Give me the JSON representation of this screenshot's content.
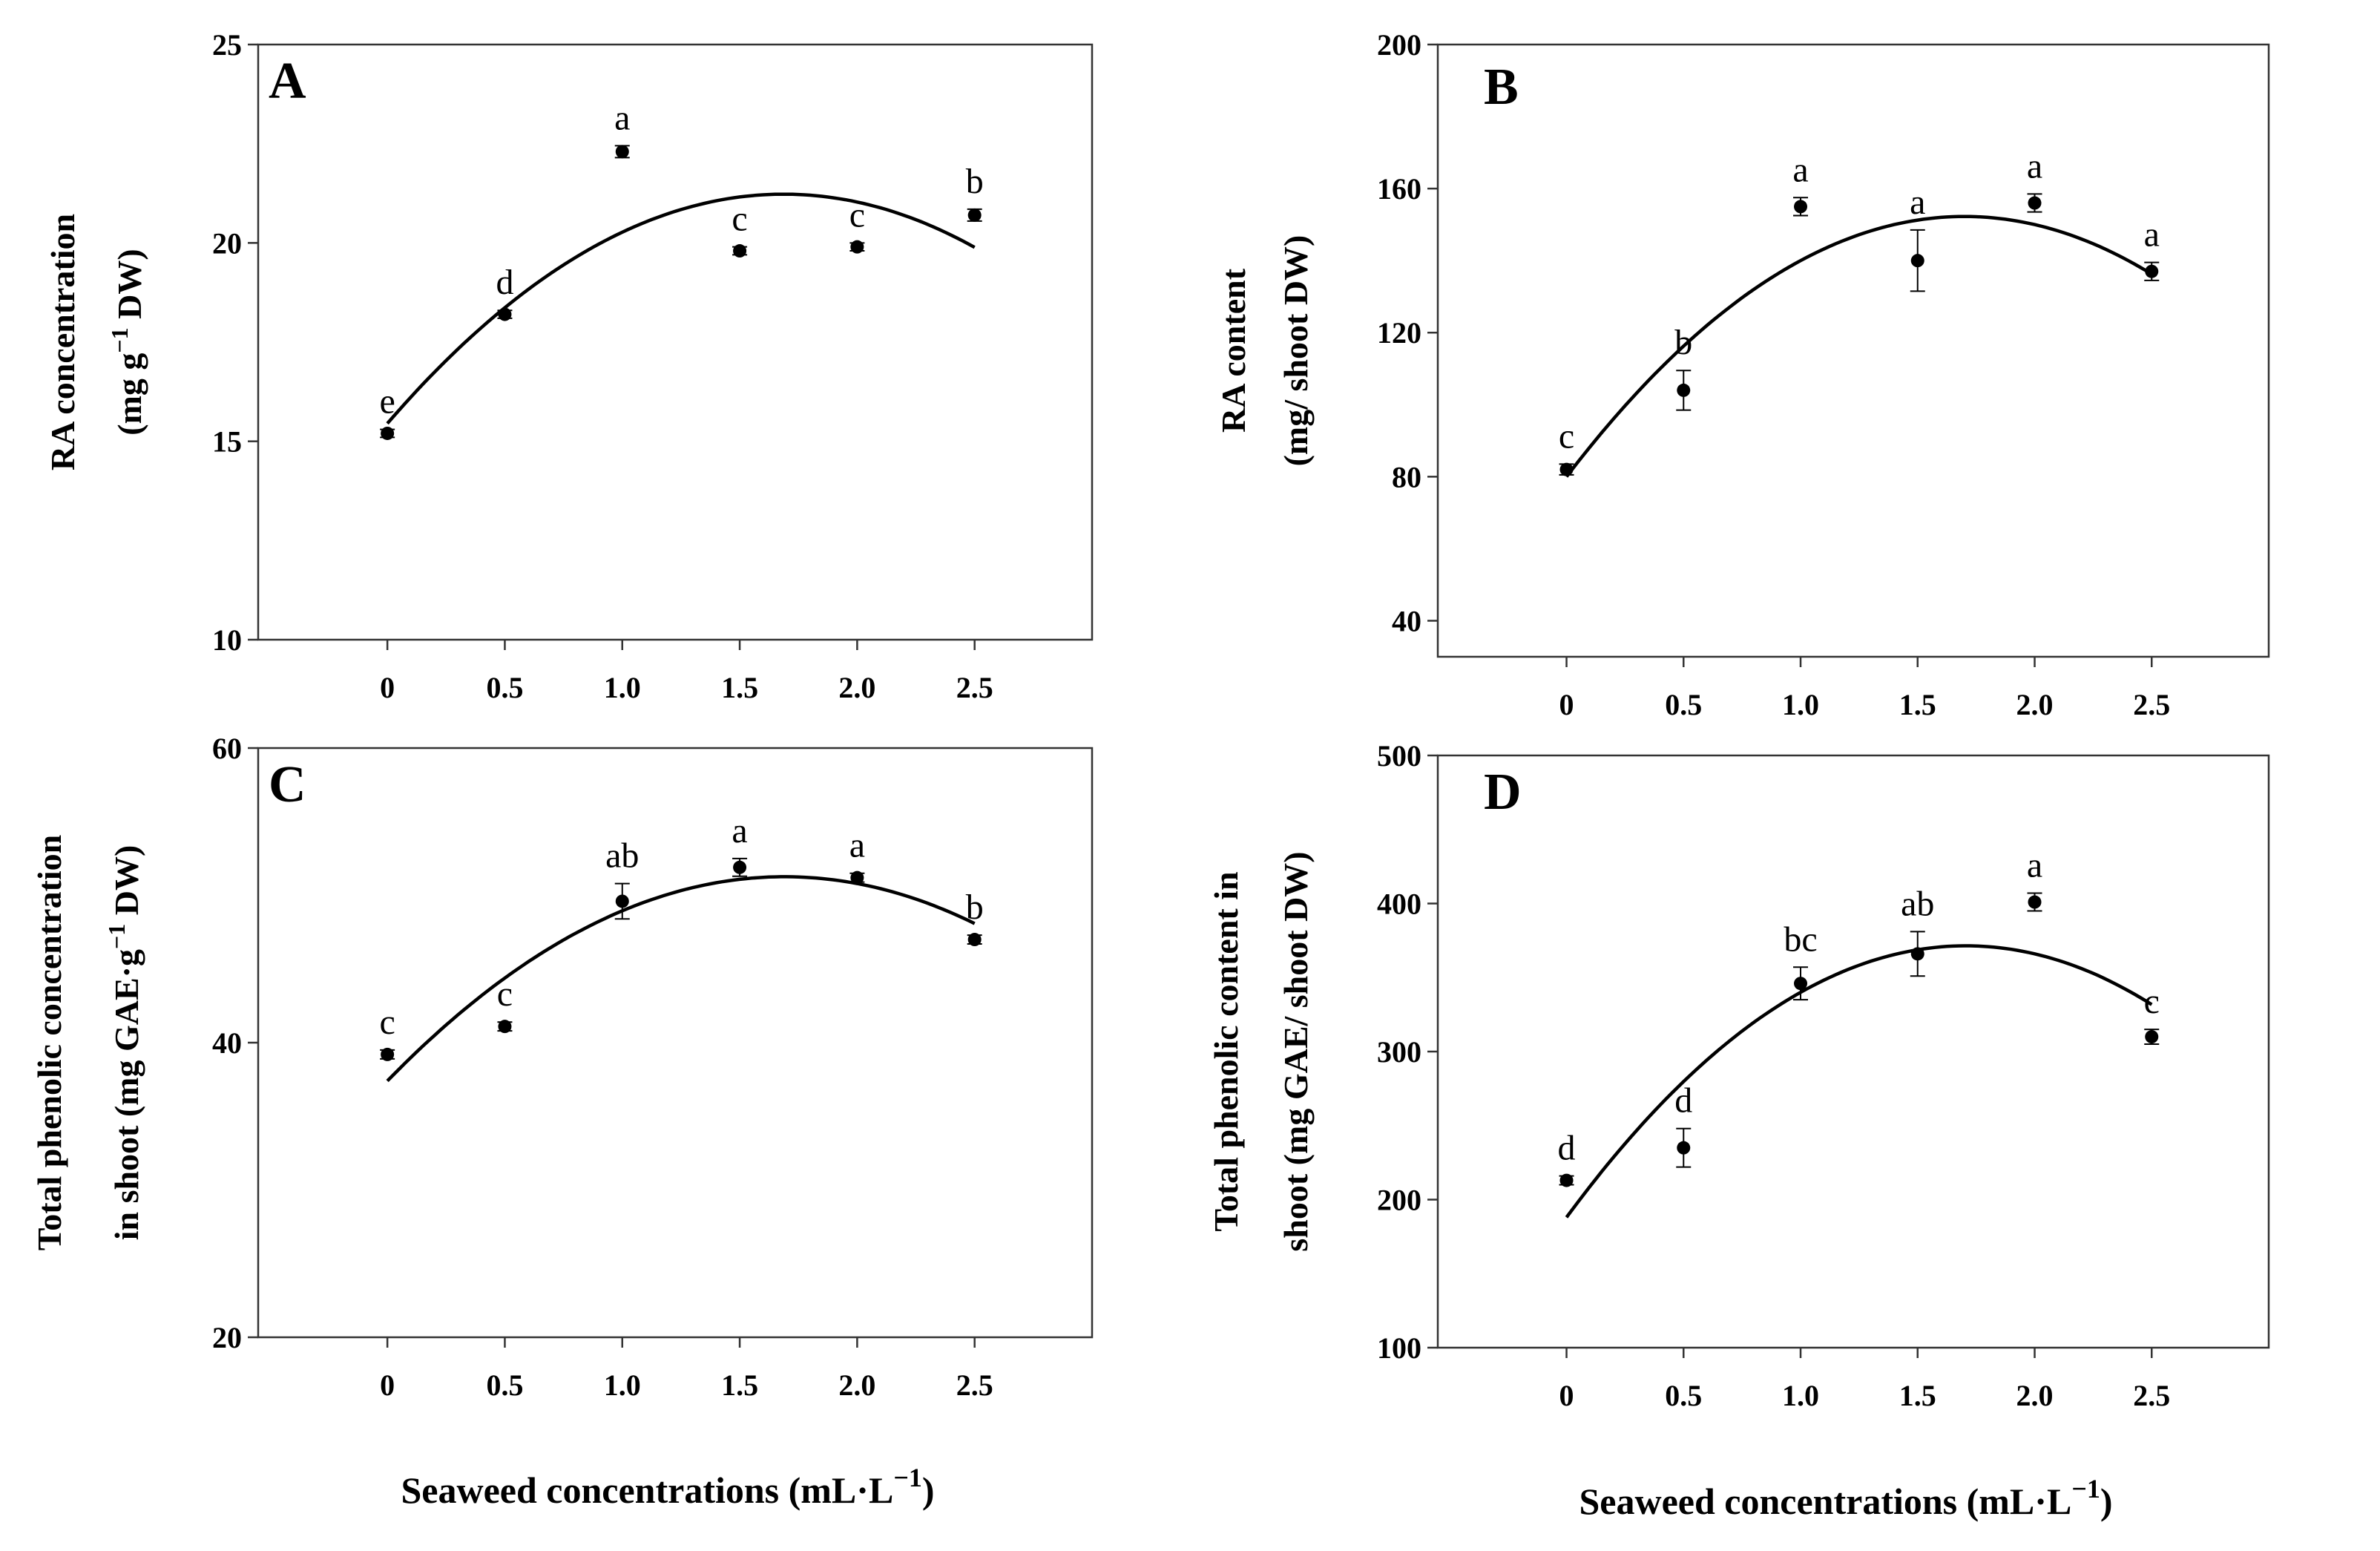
{
  "figure": {
    "x_axis_label": "Seaweed concentrations (mL·L−1)",
    "x_axis_label_parts": {
      "main": "Seaweed concentrations (mL",
      "dot": "·",
      "unit": "L",
      "sup": "−1",
      "close": ")"
    }
  },
  "chart_data": [
    {
      "type": "scatter",
      "panel": "A",
      "fit": "quadratic",
      "x": [
        0,
        0.5,
        1.0,
        1.5,
        2.0,
        2.5
      ],
      "xticks": [
        "0",
        "0.5",
        "1.0",
        "1.5",
        "2.0",
        "2.5"
      ],
      "xlim": [
        -0.55,
        3.0
      ],
      "values": [
        15.2,
        18.2,
        22.3,
        19.8,
        19.9,
        20.7
      ],
      "errors": [
        0.1,
        0.1,
        0.15,
        0.1,
        0.1,
        0.15
      ],
      "letters": [
        "e",
        "d",
        "a",
        "c",
        "c",
        "b"
      ],
      "fit_coefficients": [
        15.45,
        6.85,
        -2.03
      ],
      "ylim": [
        10,
        25
      ],
      "yticks": [
        10,
        15,
        20,
        25
      ],
      "ylabel": [
        "RA concentration",
        "(mg g⁻¹ DW)"
      ],
      "ylabel_line2": {
        "pre": "(mg g",
        "sup": "−1",
        "post": " DW)"
      },
      "xlabel": ""
    },
    {
      "type": "scatter",
      "panel": "B",
      "fit": "quadratic",
      "x": [
        0,
        0.5,
        1.0,
        1.5,
        2.0,
        2.5
      ],
      "xticks": [
        "0",
        "0.5",
        "1.0",
        "1.5",
        "2.0",
        "2.5"
      ],
      "xlim": [
        -0.55,
        3.0
      ],
      "values": [
        82,
        104,
        155,
        140,
        156,
        137
      ],
      "errors": [
        1.5,
        5.5,
        2.5,
        8.5,
        2.5,
        2.5
      ],
      "letters": [
        "c",
        "b",
        "a",
        "a",
        "a",
        "a"
      ],
      "fit_coefficients": [
        80,
        85,
        -25
      ],
      "ylim": [
        30,
        200
      ],
      "yticks": [
        40,
        80,
        120,
        160,
        200
      ],
      "ylabel": [
        "RA content",
        "(mg/ shoot DW)"
      ],
      "xlabel": ""
    },
    {
      "type": "scatter",
      "panel": "C",
      "fit": "quadratic",
      "x": [
        0,
        0.5,
        1.0,
        1.5,
        2.0,
        2.5
      ],
      "xticks": [
        "0",
        "0.5",
        "1.0",
        "1.5",
        "2.0",
        "2.5"
      ],
      "xlim": [
        -0.55,
        3.0
      ],
      "values": [
        39.2,
        41.1,
        49.6,
        51.9,
        51.2,
        47.0
      ],
      "errors": [
        0.3,
        0.3,
        1.2,
        0.6,
        0.3,
        0.3
      ],
      "letters": [
        "c",
        "c",
        "ab",
        "a",
        "a",
        "b"
      ],
      "fit_coefficients": [
        37.4,
        16.4,
        -4.85
      ],
      "ylim": [
        20,
        60
      ],
      "yticks": [
        20,
        40,
        60
      ],
      "ylabel": [
        "Total phenolic concentration",
        "in shoot (mg GAE·g⁻¹ DW)"
      ],
      "ylabel_line2": {
        "pre": "in shoot (mg GAE",
        "dot": "·",
        "g": "g",
        "sup": "−1",
        "post": " DW)"
      },
      "xlabel": "Seaweed concentrations (mL·L⁻¹)"
    },
    {
      "type": "scatter",
      "panel": "D",
      "fit": "quadratic",
      "x": [
        0,
        0.5,
        1.0,
        1.5,
        2.0,
        2.5
      ],
      "xticks": [
        "0",
        "0.5",
        "1.0",
        "1.5",
        "2.0",
        "2.5"
      ],
      "xlim": [
        -0.55,
        3.0
      ],
      "values": [
        213,
        235,
        346,
        366,
        401,
        310
      ],
      "errors": [
        3,
        13,
        11,
        15,
        6,
        5
      ],
      "letters": [
        "d",
        "d",
        "bc",
        "ab",
        "a",
        "c"
      ],
      "fit_coefficients": [
        188,
        215,
        -63
      ],
      "ylim": [
        100,
        500
      ],
      "yticks": [
        100,
        200,
        300,
        400,
        500
      ],
      "ylabel": [
        "Total phenolic content in",
        "shoot (mg GAE/ shoot DW)"
      ],
      "xlabel": "Seaweed concentrations (mL·L⁻¹)"
    }
  ]
}
